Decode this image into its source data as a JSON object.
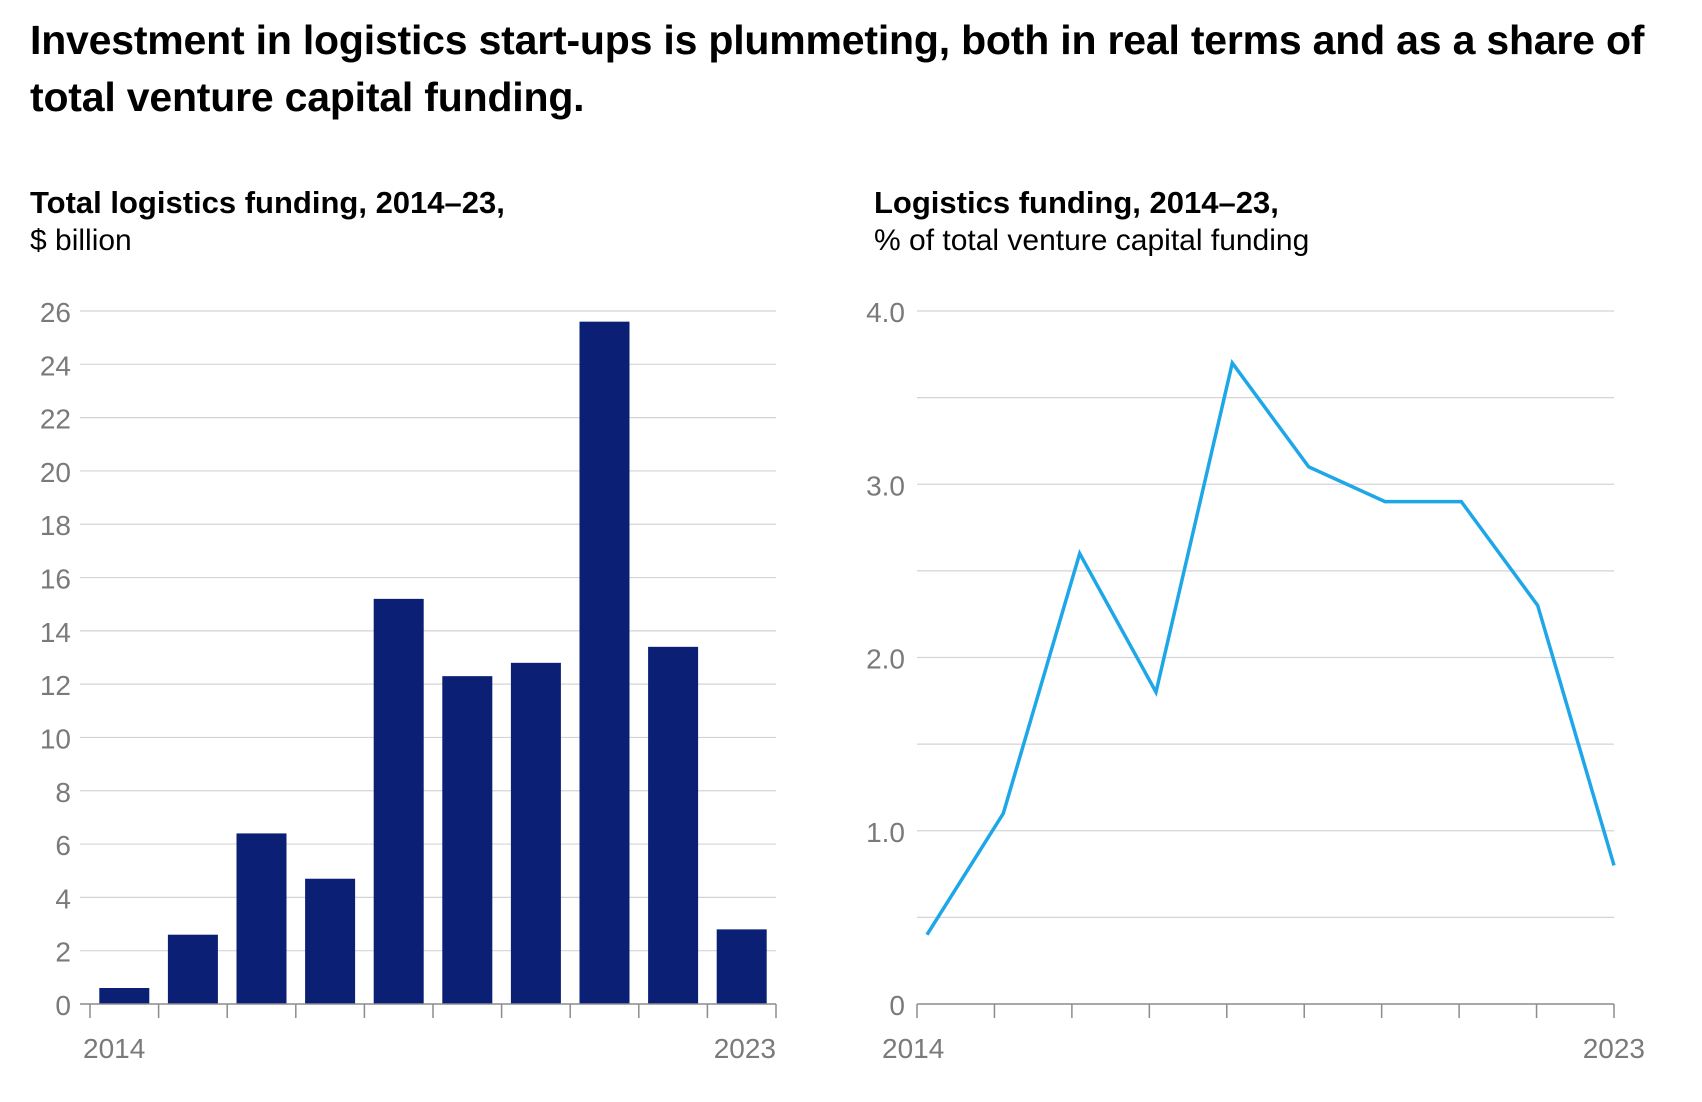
{
  "headline": "Investment in logistics start-ups is plummeting, both in real terms and as a share of total venture capital funding.",
  "colors": {
    "bar": "#0b1f74",
    "line": "#1ea7e8",
    "grid": "#d4d4d4",
    "axis": "#8c8c8c",
    "tick_text": "#7a7a7a"
  },
  "chart_data": [
    {
      "type": "bar",
      "title": "Total logistics funding, 2014–23,",
      "subtitle": "$ billion",
      "x": [
        2014,
        2015,
        2016,
        2017,
        2018,
        2019,
        2020,
        2021,
        2022,
        2023
      ],
      "x_tick_labels": [
        "2014",
        "2023"
      ],
      "values": [
        0.6,
        2.6,
        6.4,
        4.7,
        15.2,
        12.3,
        12.8,
        25.6,
        13.4,
        2.8
      ],
      "ylim": [
        0,
        26
      ],
      "y_ticks": [
        "0",
        "2",
        "4",
        "6",
        "8",
        "10",
        "12",
        "14",
        "16",
        "18",
        "20",
        "22",
        "24",
        "26"
      ],
      "grid": true
    },
    {
      "type": "line",
      "title": "Logistics funding, 2014–23,",
      "subtitle": "% of total venture capital funding",
      "x": [
        2014,
        2015,
        2016,
        2017,
        2018,
        2019,
        2020,
        2021,
        2022,
        2023
      ],
      "x_tick_labels": [
        "2014",
        "2023"
      ],
      "values": [
        0.4,
        1.1,
        2.6,
        1.8,
        3.7,
        3.1,
        2.9,
        2.9,
        2.3,
        0.8
      ],
      "ylim": [
        0,
        4.0
      ],
      "y_ticks": [
        "0",
        "1.0",
        "2.0",
        "3.0",
        "4.0"
      ],
      "grid": true
    }
  ]
}
